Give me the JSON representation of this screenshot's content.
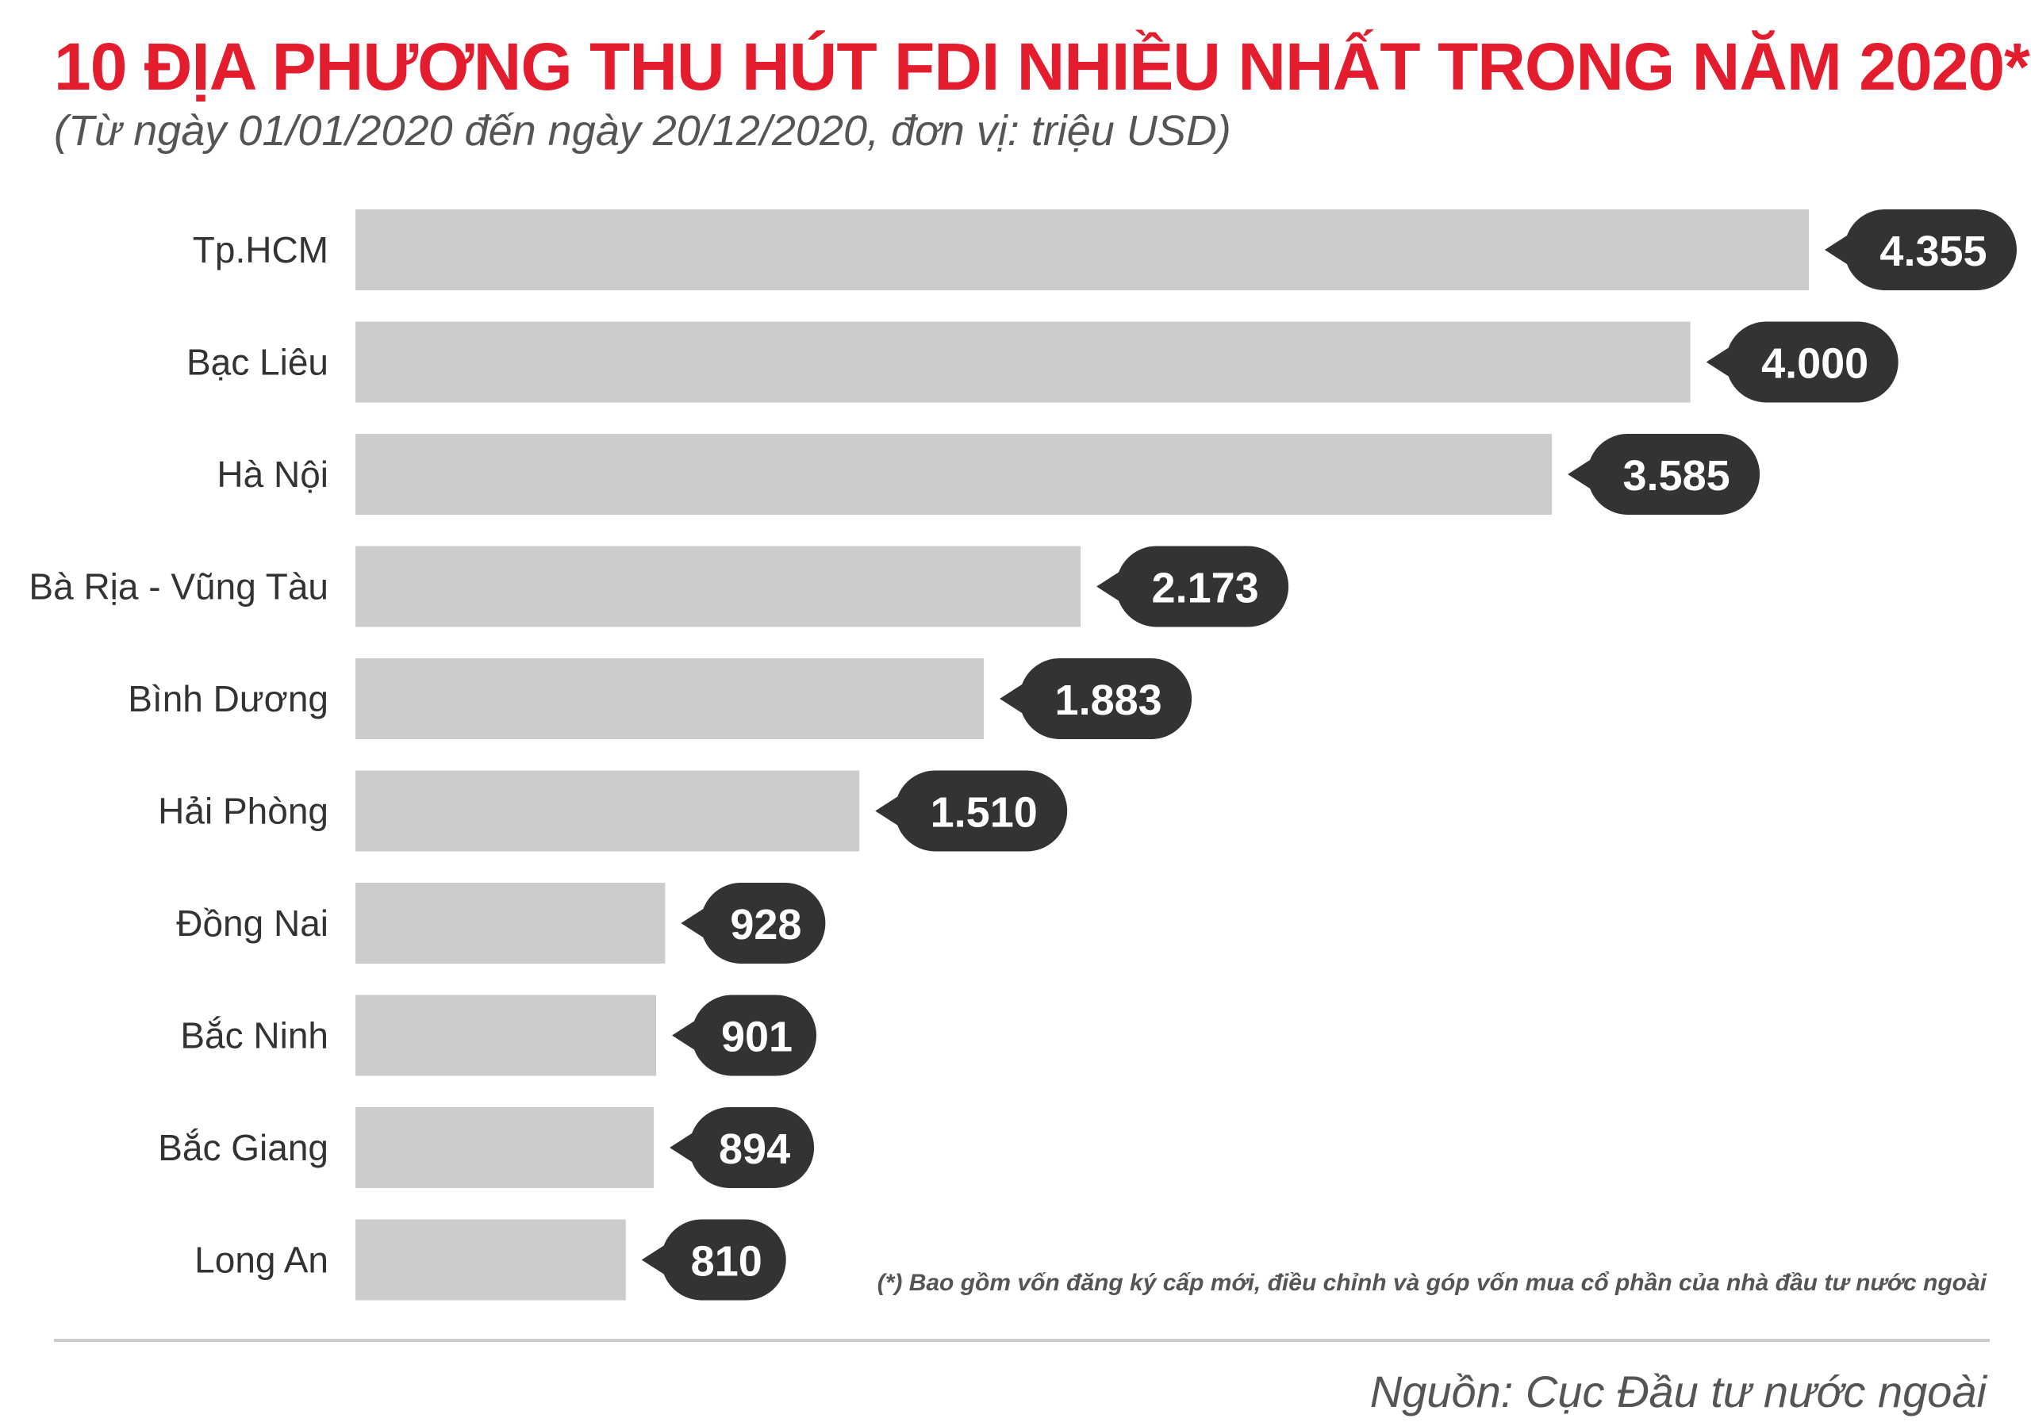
{
  "title": "10 ĐỊA PHƯƠNG THU HÚT FDI NHIỀU NHẤT TRONG NĂM 2020*",
  "subtitle": "(Từ ngày 01/01/2020 đến ngày 20/12/2020, đơn vị: triệu USD)",
  "footnote": "(*) Bao gồm vốn đăng ký cấp mới, điều chỉnh và góp vốn mua cổ phần của nhà đầu tư nước ngoài",
  "source": "Nguồn: Cục Đầu tư nước ngoài",
  "colors": {
    "title": "#e31d2d",
    "bar": "#cccccc",
    "bubble": "#333333",
    "bubble_text": "#ffffff",
    "text": "#333333"
  },
  "chart_data": {
    "type": "bar",
    "orientation": "horizontal",
    "categories": [
      "Tp.HCM",
      "Bạc Liêu",
      "Hà Nội",
      "Bà Rịa - Vũng Tàu",
      "Bình Dương",
      "Hải Phòng",
      "Đồng Nai",
      "Bắc Ninh",
      "Bắc Giang",
      "Long An"
    ],
    "values": [
      4355,
      4000,
      3585,
      2173,
      1883,
      1510,
      928,
      901,
      894,
      810
    ],
    "value_labels": [
      "4.355",
      "4.000",
      "3.585",
      "2.173",
      "1.883",
      "1.510",
      "928",
      "901",
      "894",
      "810"
    ],
    "xlim": [
      0,
      4355
    ],
    "grid": false,
    "legend": "none"
  }
}
